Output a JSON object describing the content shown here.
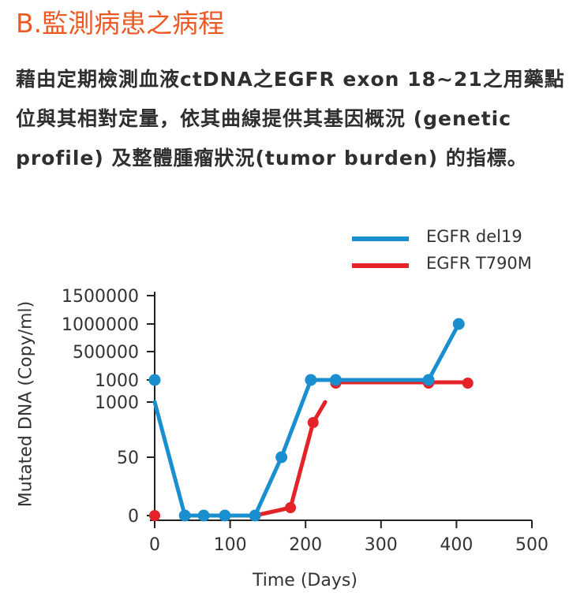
{
  "header": {
    "title": "B.監測病患之病程",
    "description": "藉由定期檢測血液ctDNA之EGFR exon 18~21之用藥點位與其相對定量，依其曲線提供其基因概況 (genetic profile) 及整體腫瘤狀況(tumor burden) 的指標。"
  },
  "colors": {
    "title": "#ec5a24",
    "del19": "#1a8fd0",
    "t790m": "#e32328"
  },
  "chart_data": {
    "type": "line",
    "xlabel": "Time (Days)",
    "ylabel": "Mutated DNA (Copy/ml)",
    "xlim": [
      0,
      500
    ],
    "xticks": [
      "0",
      "100",
      "200",
      "300",
      "400",
      "500"
    ],
    "yticks": [
      "0",
      "50",
      "1000",
      "1000",
      "500000",
      "1000000",
      "1500000"
    ],
    "legend_position": "top-right",
    "grid": false,
    "series": [
      {
        "name": "EGFR del19",
        "color": "#1a8fd0",
        "points": [
          {
            "x": 0,
            "y": "1000"
          },
          {
            "x": 40,
            "y": 0
          },
          {
            "x": 65,
            "y": 0
          },
          {
            "x": 93,
            "y": 0
          },
          {
            "x": 133,
            "y": 0
          },
          {
            "x": 168,
            "y": 50
          },
          {
            "x": 207,
            "y": 1000
          },
          {
            "x": 240,
            "y": 1000
          },
          {
            "x": 363,
            "y": 1000
          },
          {
            "x": 403,
            "y": 1000000
          }
        ],
        "segments": [
          [
            1,
            9
          ]
        ],
        "extra_line_from_x0_y": "1000"
      },
      {
        "name": "EGFR T790M",
        "color": "#e32328",
        "points": [
          {
            "x": 0,
            "y": 0
          },
          {
            "x": 133,
            "y": 0
          },
          {
            "x": 180,
            "y": 5
          },
          {
            "x": 210,
            "y": 800
          },
          {
            "x": 240,
            "y": 1000
          },
          {
            "x": 363,
            "y": 1000
          },
          {
            "x": 415,
            "y": 1000
          }
        ]
      }
    ]
  }
}
